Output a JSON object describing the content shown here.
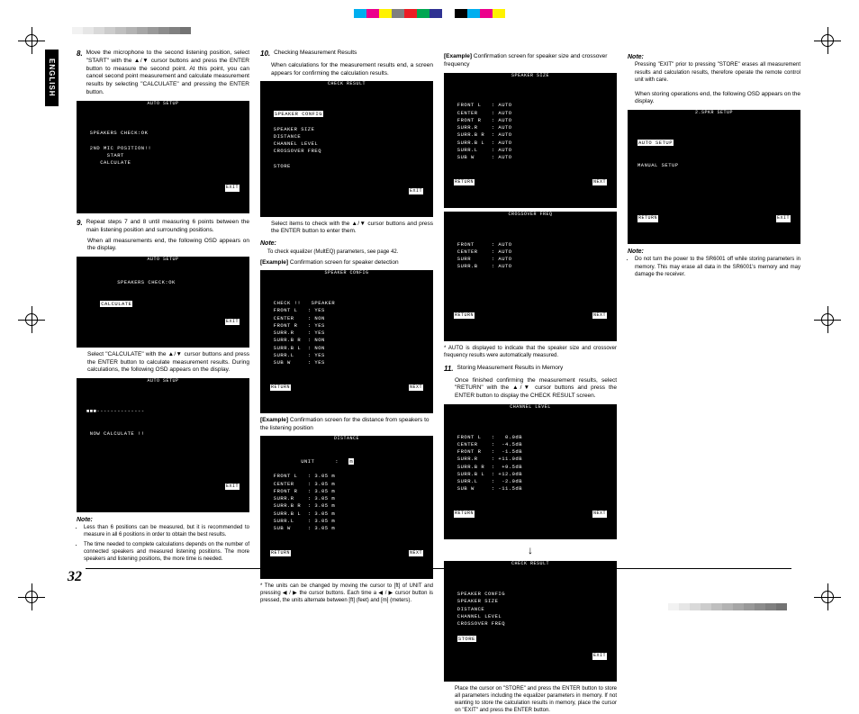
{
  "colorbar": [
    "#00aeef",
    "#ec008c",
    "#fff200",
    "#808080",
    "#ed1c24",
    "#00a651",
    "#2e3192",
    "#ffffff",
    "#000000",
    "#00aeef",
    "#ec008c",
    "#fff200"
  ],
  "graybar": [
    "#f2f2f2",
    "#e6e6e6",
    "#d9d9d9",
    "#cccccc",
    "#bfbfbf",
    "#b3b3b3",
    "#a6a6a6",
    "#999999",
    "#8c8c8c",
    "#808080",
    "#737373"
  ],
  "lang": "ENGLISH",
  "page_num": "32",
  "col1": {
    "step8_num": "8.",
    "step8": "Move the microphone to the second listening position, select \"START\" with the ▲/▼ cursor buttons and press the ENTER button to measure the second point. At this point, you can cancel second point measurement and calculate measurement results by selecting \"CALCULATE\" and pressing the ENTER button.",
    "osd1_title": "AUTO SETUP",
    "osd1": " SPEAKERS CHECK:OK\n\n 2ND MIC POSITION!!\n      START\n    CALCULATE",
    "osd1_exit": "EXIT",
    "step9_num": "9.",
    "step9a": "Repeat steps 7 and 8 until measuring 6 points between the main listening position and surrounding positions.",
    "step9b": "When all measurements end, the following OSD appears on the display.",
    "osd2_title": "AUTO SETUP",
    "osd2": " SPEAKERS CHECK:OK\n\n\n    ",
    "osd2_calc": "CALCULATE",
    "osd2_exit": "EXIT",
    "step9c": "Select \"CALCULATE\" with the ▲/▼ cursor buttons and press the ENTER button to calculate measurement results. During calculations, the following OSD appears on the display.",
    "osd3_title": "AUTO SETUP",
    "osd3a": "■■■",
    "osd3b": "--------------",
    "osd3c": " NOW CALCULATE !!",
    "osd3_exit": "EXIT",
    "note": "Note:",
    "note1": "Less than 6 positions can be measured, but it is recommended to measure in all 6 positions in order to obtain the best results.",
    "note2": "The time needed to complete calculations depends on the number of connected speakers and measured listening positions. The more speakers and listening positions, the more time is needed."
  },
  "col2": {
    "step10_num": "10.",
    "step10a": "Checking Measurement Results",
    "step10b": "When calculations for the measurement results end, a screen appears for confirming the calculation results.",
    "osd1_title": "CHECK RESULT",
    "osd1": "\n ",
    "osd1_hl": "SPEAKER CONFIG",
    "osd1b": " SPEAKER SIZE\n DISTANCE\n CHANNEL LEVEL\n CROSSOVER FREQ\n\n STORE",
    "osd1_exit": "EXIT",
    "step10c": "Select items to check with the ▲/▼ cursor buttons and press the ENTER button to enter them.",
    "note": "Note:",
    "note_text": "To check equalizer (MultEQ) parameters, see page 42.",
    "ex1": "[Example] Confirmation screen for speaker detection",
    "osd2_title": "SPEAKER CONFIG",
    "osd2": " CHECK !!   SPEAKER\n FRONT L   : YES\n CENTER    : NON\n FRONT R   : YES\n SURR.R    : YES\n SURR.B R  : NON\n SURR.B L  : NON\n SURR.L    : YES\n SUB W     : YES",
    "osd2_ret": "RETURN",
    "osd2_next": "NEXT",
    "ex2": "[Example] Confirmation screen for the distance from speakers to the listening position",
    "osd3_title": "DISTANCE",
    "osd3": " UNIT      :   ",
    "osd3_m": "m",
    "osd3b": " FRONT L   : 3.05 m\n CENTER    : 3.05 m\n FRONT R   : 3.05 m\n SURR.R    : 3.05 m\n SURR.B R  : 3.05 m\n SURR.B L  : 3.05 m\n SURR.L    : 3.05 m\n SUB W     : 3.05 m",
    "osd3_ret": "RETURN",
    "osd3_next": "NEXT",
    "foot": "* The units can be changed by moving the cursor to [ft] of UNIT and pressing ◀ / ▶ the cursor buttons. Each time a ◀ / ▶ cursor button is pressed, the units alternate between [ft] (feet) and [m] (meters)."
  },
  "col3": {
    "ex1": "[Example] Confirmation screen for speaker size and crossover frequency",
    "osd1_title": "SPEAKER SIZE",
    "osd1": " FRONT L   : AUTO\n CENTER    : AUTO\n FRONT R   : AUTO\n SURR.R    : AUTO\n SURR.B R  : AUTO\n SURR.B L  : AUTO\n SURR.L    : AUTO\n SUB W     : AUTO",
    "osd1_ret": "RETURN",
    "osd1_next": "NEXT",
    "osd2_title": "CROSSOVER FREQ",
    "osd2": " FRONT     : AUTO\n CENTER    : AUTO\n SURR      : AUTO\n SURR.B    : AUTO",
    "osd2_ret": "RETURN",
    "osd2_next": "NEXT",
    "star": "* AUTO is displayed to indicate that the speaker size and crossover frequency results were automatically measured.",
    "step11_num": "11.",
    "step11a": "Storing Measurement Results in Memory",
    "step11b": "Once finished confirming the measurement results, select \"RETURN\" with the ▲/▼ cursor buttons and press the ENTER button to display the CHECK RESULT screen.",
    "osd3_title": "CHANNEL LEVEL",
    "osd3": " FRONT L   :   0.0dB\n CENTER    :  -4.5dB\n FRONT R   :  -1.5dB\n SURR.R    : +11.0dB\n SURR.B R  :  +9.5dB\n SURR.B L  : +12.0dB\n SURR.L    :  -2.0dB\n SUB W     : -11.5dB",
    "osd3_ret": "RETURN",
    "osd3_next": "NEXT",
    "osd4_title": "CHECK RESULT",
    "osd4": "\n SPEAKER CONFIG\n SPEAKER SIZE\n DISTANCE\n CHANNEL LEVEL\n CROSSOVER FREQ\n\n ",
    "osd4_hl": "STORE",
    "osd4_exit": "EXIT",
    "foot": "Place the cursor on \"STORE\" and press the ENTER button to store all parameters including the equalizer parameters in memory. If not wanting to store the calculation results in memory, place the cursor on \"EXIT\" and press the ENTER button."
  },
  "col4": {
    "note1": "Note:",
    "note1_text": "Pressing \"EXIT\" prior to pressing \"STORE\" erases all measurement results and calculation results, therefore operate the remote control unit with care.",
    "text2": "When storing operations end, the following OSD appears on the display.",
    "osd1_title": "2.SPKR SETUP",
    "osd1_hl": "AUTO SETUP",
    "osd1b": "MANUAL SETUP",
    "osd1_ret": "RETURN",
    "osd1_exit": "EXIT",
    "note2": "Note:",
    "note2_text": "Do not turn the power to the SR6001 off while storing parameters in memory. This may erase all data in the SR6001's memory and may damage the receiver."
  }
}
